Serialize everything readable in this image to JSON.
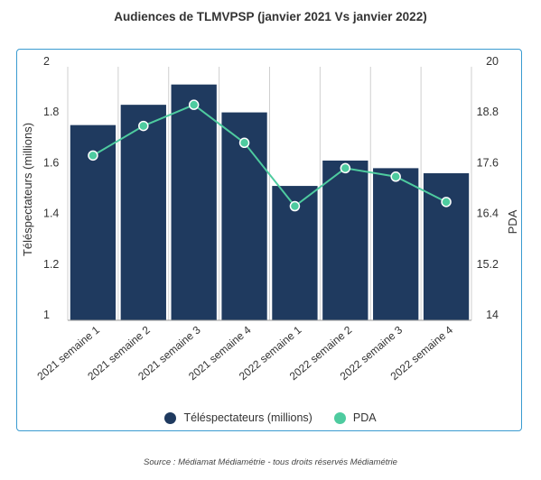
{
  "title": "Audiences de TLMVPSP (janvier 2021 Vs janvier 2022)",
  "source": "Source : Médiamat Médiamétrie - tous droits réservés Médiamétrie",
  "legend": {
    "bars": "Téléspectateurs (millions)",
    "line": "PDA"
  },
  "colors": {
    "bar": "#1f3a5f",
    "line": "#4ecb9f",
    "frame": "#3a9bd0",
    "grid": "#cfcfcf"
  },
  "chart_data": {
    "type": "bar",
    "title": "Audiences de TLMVPSP (janvier 2021 Vs janvier 2022)",
    "categories": [
      "2021 semaine 1",
      "2021 semaine 2",
      "2021 semaine 3",
      "2021 semaine 4",
      "2022 semaine 1",
      "2022 semaine 2",
      "2022 semaine 3",
      "2022 semaine 4"
    ],
    "ylabel_left": "Téléspectateurs (millions)",
    "ylabel_right": "PDA",
    "ylim_left": [
      1,
      2
    ],
    "ylim_right": [
      14,
      20
    ],
    "yticks_left": [
      "2",
      "1.8",
      "1.6",
      "1.4",
      "1.2",
      "1"
    ],
    "yticks_right": [
      "20",
      "18.8",
      "17.6",
      "16.4",
      "15.2",
      "14"
    ],
    "grid": "vertical",
    "legend_position": "bottom",
    "series": [
      {
        "name": "Téléspectateurs (millions)",
        "type": "bar",
        "axis": "left",
        "values": [
          1.77,
          1.85,
          1.93,
          1.82,
          1.53,
          1.63,
          1.6,
          1.58
        ]
      },
      {
        "name": "PDA",
        "type": "line",
        "axis": "right",
        "values": [
          17.9,
          18.6,
          19.1,
          18.2,
          16.7,
          17.6,
          17.4,
          16.8
        ]
      }
    ]
  }
}
